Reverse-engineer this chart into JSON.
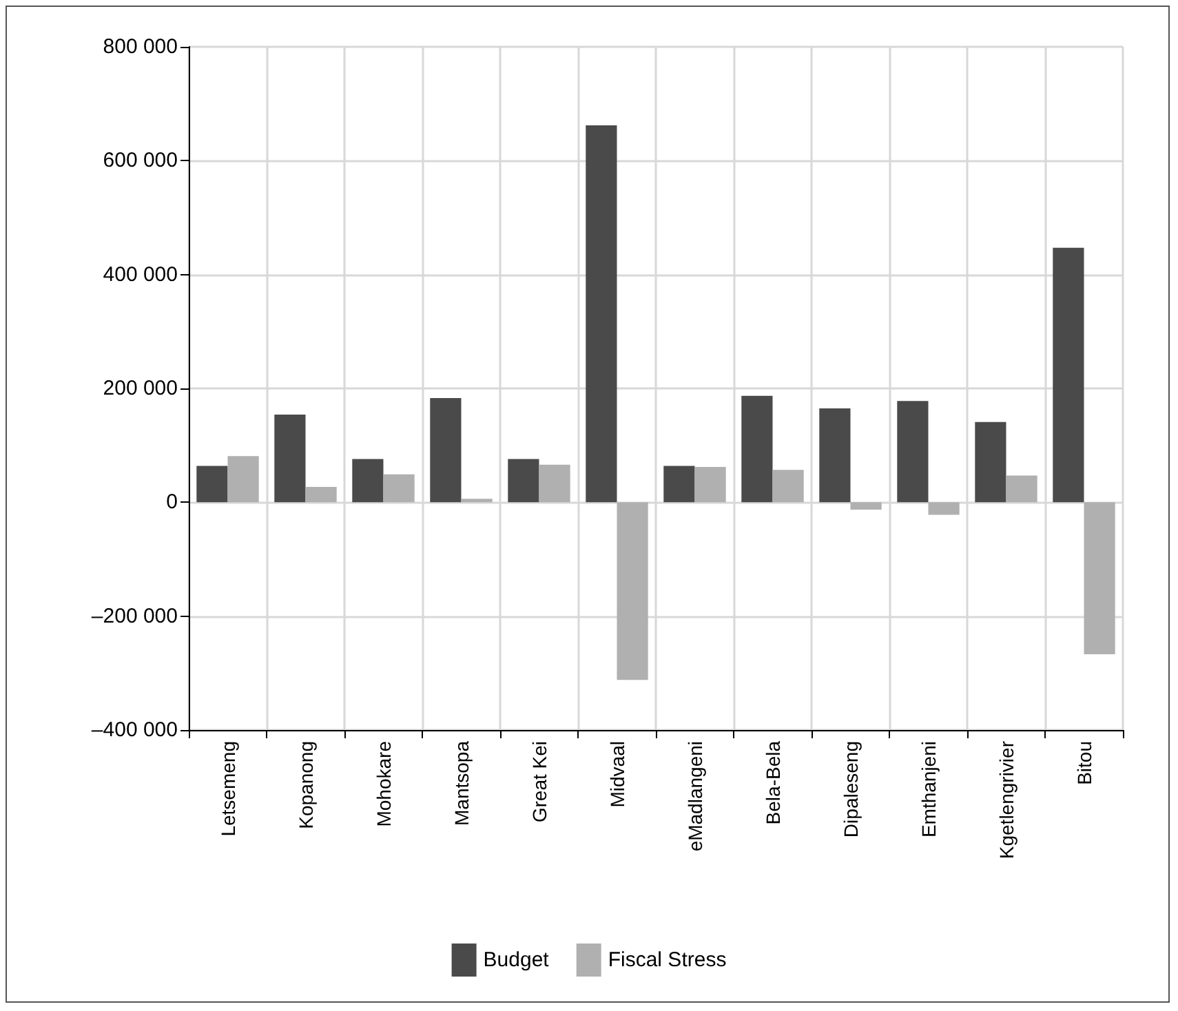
{
  "chart_data": {
    "type": "bar",
    "categories": [
      "Letsemeng",
      "Kopanong",
      "Mohokare",
      "Mantsopa",
      "Great Kei",
      "Midvaal",
      "eMadlangeni",
      "Bela-Bela",
      "Dipaleseng",
      "Emthanjeni",
      "Kgetlengrivier",
      "Bitou"
    ],
    "series": [
      {
        "name": "Budget",
        "color": "#4a4a4a",
        "values": [
          64000,
          154000,
          76000,
          183000,
          76000,
          662000,
          64000,
          187000,
          165000,
          178000,
          141000,
          447000
        ]
      },
      {
        "name": "Fiscal Stress",
        "color": "#b0b0b0",
        "values": [
          81000,
          27000,
          49000,
          6000,
          66000,
          -312000,
          62000,
          57000,
          -13000,
          -22000,
          47000,
          -267000
        ]
      }
    ],
    "ylim": [
      -400000,
      800000
    ],
    "yticks": [
      {
        "value": -400000,
        "label": "–400 000"
      },
      {
        "value": -200000,
        "label": "–200 000"
      },
      {
        "value": 0,
        "label": "0"
      },
      {
        "value": 200000,
        "label": "200 000"
      },
      {
        "value": 400000,
        "label": "400 000"
      },
      {
        "value": 600000,
        "label": "600 000"
      },
      {
        "value": 800000,
        "label": "800 000"
      }
    ],
    "grid": true,
    "legend": "bottom"
  }
}
